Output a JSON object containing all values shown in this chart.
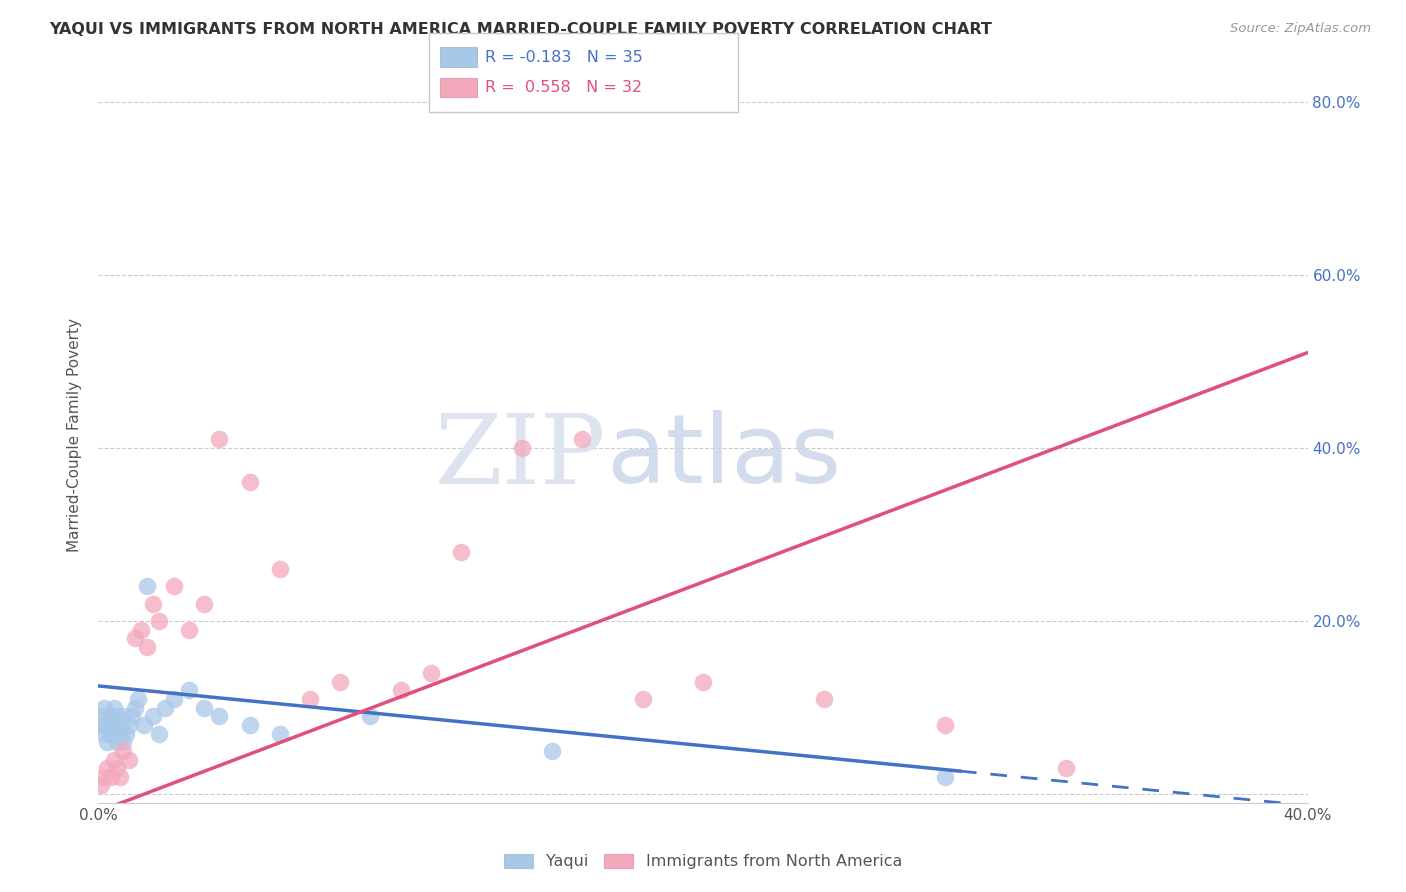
{
  "title": "YAQUI VS IMMIGRANTS FROM NORTH AMERICA MARRIED-COUPLE FAMILY POVERTY CORRELATION CHART",
  "source": "Source: ZipAtlas.com",
  "ylabel": "Married-Couple Family Poverty",
  "xlim": [
    0.0,
    0.42
  ],
  "ylim": [
    -0.01,
    0.87
  ],
  "plot_xlim": [
    0.0,
    0.4
  ],
  "plot_ylim": [
    0.0,
    0.84
  ],
  "legend_label1": "Yaqui",
  "legend_label2": "Immigrants from North America",
  "R1": "-0.183",
  "N1": "35",
  "R2": "0.558",
  "N2": "32",
  "color1": "#a8c8e8",
  "color2": "#f4a8bc",
  "line_color1": "#4472c4",
  "line_color2": "#e0507a",
  "background_color": "#ffffff",
  "yaqui_x": [
    0.001,
    0.001,
    0.002,
    0.002,
    0.003,
    0.003,
    0.004,
    0.004,
    0.005,
    0.005,
    0.006,
    0.006,
    0.007,
    0.007,
    0.008,
    0.008,
    0.009,
    0.01,
    0.011,
    0.012,
    0.013,
    0.015,
    0.016,
    0.018,
    0.02,
    0.022,
    0.025,
    0.03,
    0.035,
    0.04,
    0.05,
    0.06,
    0.09,
    0.15,
    0.28
  ],
  "yaqui_y": [
    0.08,
    0.09,
    0.07,
    0.1,
    0.06,
    0.08,
    0.09,
    0.07,
    0.1,
    0.08,
    0.06,
    0.09,
    0.07,
    0.08,
    0.06,
    0.09,
    0.07,
    0.08,
    0.09,
    0.1,
    0.11,
    0.08,
    0.24,
    0.09,
    0.07,
    0.1,
    0.11,
    0.12,
    0.1,
    0.09,
    0.08,
    0.07,
    0.09,
    0.05,
    0.02
  ],
  "immigrants_x": [
    0.001,
    0.002,
    0.003,
    0.004,
    0.005,
    0.006,
    0.007,
    0.008,
    0.01,
    0.012,
    0.014,
    0.016,
    0.018,
    0.02,
    0.025,
    0.03,
    0.035,
    0.04,
    0.05,
    0.06,
    0.07,
    0.08,
    0.1,
    0.11,
    0.12,
    0.14,
    0.16,
    0.18,
    0.2,
    0.24,
    0.28,
    0.32
  ],
  "immigrants_y": [
    0.01,
    0.02,
    0.03,
    0.02,
    0.04,
    0.03,
    0.02,
    0.05,
    0.04,
    0.18,
    0.19,
    0.17,
    0.22,
    0.2,
    0.24,
    0.19,
    0.22,
    0.41,
    0.36,
    0.26,
    0.11,
    0.13,
    0.12,
    0.14,
    0.28,
    0.4,
    0.41,
    0.11,
    0.13,
    0.11,
    0.08,
    0.03
  ],
  "line1_x0": 0.0,
  "line1_x1": 0.42,
  "line1_y0": 0.125,
  "line1_y1": -0.02,
  "line1_solid_end": 0.285,
  "line2_x0": 0.0,
  "line2_x1": 0.4,
  "line2_y0": -0.02,
  "line2_y1": 0.51
}
